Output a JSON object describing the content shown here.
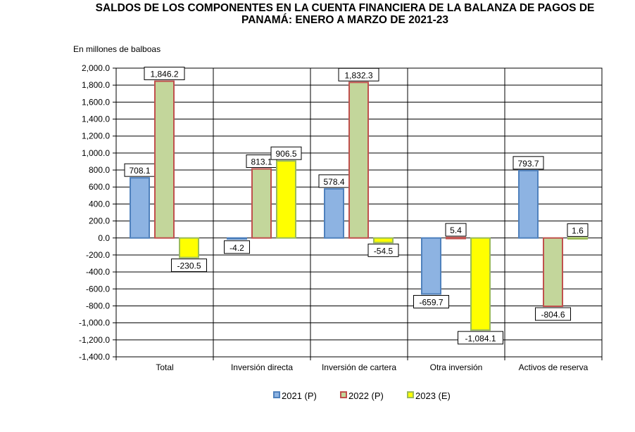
{
  "chart_data": {
    "type": "bar",
    "title": "SALDOS DE LOS COMPONENTES EN LA CUENTA FINANCIERA DE LA BALANZA DE PAGOS DE PANAMÁ: ENERO A MARZO DE 2021-23",
    "ylabel": "En millones de balboas",
    "xlabel": "",
    "ylim": [
      -1400,
      2000
    ],
    "ytick_step": 200,
    "yticks": [
      "2,000.0",
      "1,800.0",
      "1,600.0",
      "1,400.0",
      "1,200.0",
      "1,000.0",
      "800.0",
      "600.0",
      "400.0",
      "200.0",
      "0.0",
      "-200.0",
      "-400.0",
      "-600.0",
      "-800.0",
      "-1,000.0",
      "-1,200.0",
      "-1,400.0"
    ],
    "categories": [
      "Total",
      "Inversión directa",
      "Inversión de cartera",
      "Otra inversión",
      "Activos de reserva"
    ],
    "grid": true,
    "legend_position": "bottom",
    "series": [
      {
        "name": "2021 (P)",
        "values": [
          708.1,
          -4.2,
          578.4,
          -659.7,
          793.7
        ],
        "labels": [
          "708.1",
          "-4.2",
          "578.4",
          "-659.7",
          "793.7"
        ],
        "fill": "#8db3e2",
        "stroke": "#4f81bd"
      },
      {
        "name": "2022 (P)",
        "values": [
          1846.2,
          813.1,
          1832.3,
          5.4,
          -804.6
        ],
        "labels": [
          "1,846.2",
          "813.1",
          "1,832.3",
          "5.4",
          "-804.6"
        ],
        "fill": "#c3d69b",
        "stroke": "#c0504d"
      },
      {
        "name": "2023 (E)",
        "values": [
          -230.5,
          906.5,
          -54.5,
          -1084.1,
          1.6
        ],
        "labels": [
          "-230.5",
          "906.5",
          "-54.5",
          "-1,084.1",
          "1.6"
        ],
        "fill": "#ffff00",
        "stroke": "#9bbb59"
      }
    ]
  }
}
